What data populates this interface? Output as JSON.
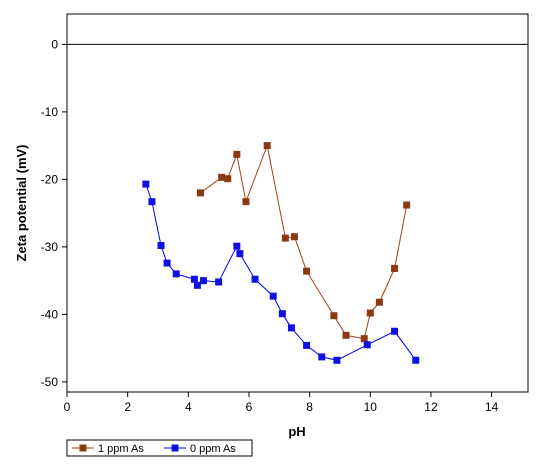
{
  "chart_data": {
    "type": "line",
    "xlabel": "pH",
    "ylabel": "Zeta potential (mV)",
    "xlim": [
      0,
      15.2
    ],
    "ylim": [
      -51.5,
      4.5
    ],
    "xticks": [
      0,
      2,
      4,
      6,
      8,
      10,
      12,
      14
    ],
    "yticks": [
      0,
      -10,
      -20,
      -30,
      -40,
      -50
    ],
    "grid": false,
    "reference_line_y": 0,
    "legend_position": "bottom-left, below plot",
    "series": [
      {
        "name": "1 ppm As",
        "color": "#a0421a",
        "marker_color": "#8b3a14",
        "x": [
          4.4,
          5.1,
          5.3,
          5.6,
          5.9,
          6.6,
          7.2,
          7.5,
          7.9,
          8.8,
          9.2,
          9.8,
          10.0,
          10.3,
          10.8,
          11.2
        ],
        "y": [
          -22.0,
          -19.7,
          -19.9,
          -16.3,
          -23.3,
          -15.0,
          -28.7,
          -28.5,
          -33.6,
          -40.2,
          -43.1,
          -43.6,
          -39.8,
          -38.2,
          -33.2,
          -23.8
        ]
      },
      {
        "name": "0 ppm As",
        "color": "#0000ff",
        "marker_color": "#1010e0",
        "x": [
          2.6,
          2.8,
          3.1,
          3.3,
          3.6,
          4.2,
          4.3,
          4.5,
          5.0,
          5.6,
          5.7,
          6.2,
          6.8,
          7.1,
          7.4,
          7.9,
          8.4,
          8.9,
          9.9,
          10.8,
          11.5
        ],
        "y": [
          -20.7,
          -23.3,
          -29.8,
          -32.4,
          -34.0,
          -34.8,
          -35.7,
          -35.0,
          -35.2,
          -29.9,
          -31.0,
          -34.8,
          -37.3,
          -39.9,
          -42.0,
          -44.6,
          -46.3,
          -46.8,
          -44.5,
          -42.5,
          -46.8
        ]
      }
    ]
  }
}
